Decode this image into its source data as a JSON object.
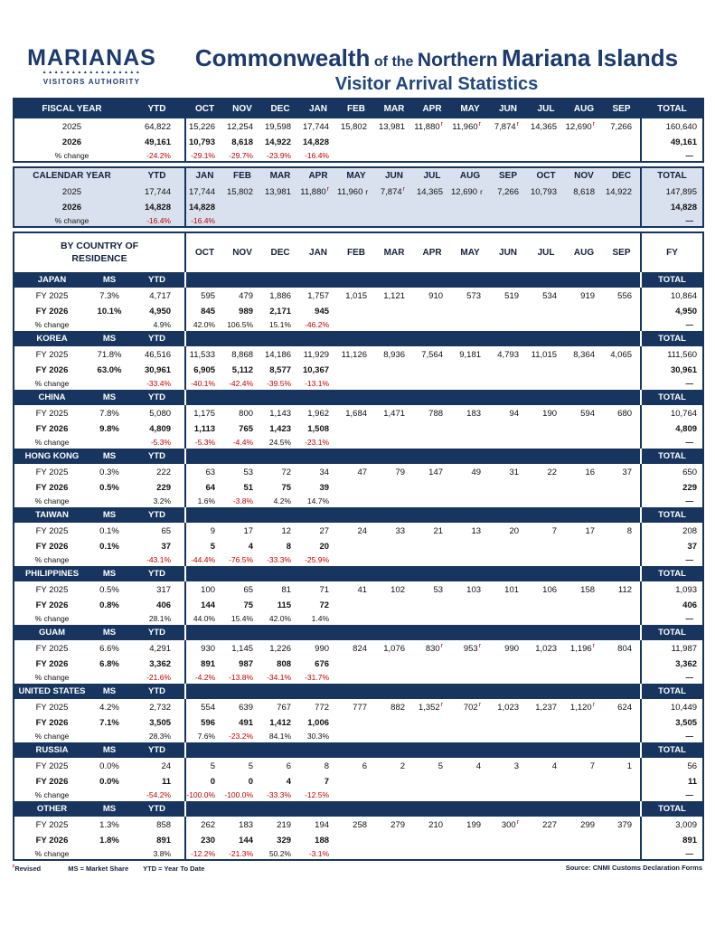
{
  "header": {
    "logo": {
      "brand": "MARIANAS",
      "zigzag": "▲▲▲▲▲▲▲▲▲▲▲▲▲▲▲▲▲",
      "sub": "VISITORS AUTHORITY"
    },
    "title_parts": {
      "p1": "Commonwealth",
      "p2": "of the",
      "p3": "Northern",
      "p4": "Mariana Islands"
    },
    "subtitle": "Visitor Arrival Statistics"
  },
  "colors": {
    "navy": "#17355e",
    "calendar_bg": "#d9e1ee",
    "negative_red": "#c00000"
  },
  "fiscal": {
    "title": "FISCAL YEAR",
    "ytd_label": "YTD",
    "months": [
      "OCT",
      "NOV",
      "DEC",
      "JAN",
      "FEB",
      "MAR",
      "APR",
      "MAY",
      "JUN",
      "JUL",
      "AUG",
      "SEP"
    ],
    "total_label": "TOTAL",
    "rows": [
      {
        "label": "2025",
        "cls": "y1",
        "ytd": "64,822",
        "months": [
          "15,226",
          "12,254",
          "19,598",
          "17,744",
          "15,802",
          "13,981",
          {
            "v": "11,880",
            "f": "r",
            "fc": "red"
          },
          {
            "v": "11,960",
            "f": "r",
            "fc": "red"
          },
          {
            "v": "7,874",
            "f": "r",
            "fc": "red"
          },
          "14,365",
          {
            "v": "12,690",
            "f": "r",
            "fc": "red"
          },
          "7,266"
        ],
        "total": "160,640"
      },
      {
        "label": "2026",
        "cls": "y2",
        "ytd": "49,161",
        "months": [
          "10,793",
          "8,618",
          "14,922",
          "14,828",
          "",
          "",
          "",
          "",
          "",
          "",
          "",
          ""
        ],
        "total": "49,161"
      },
      {
        "label": "% change",
        "cls": "pct",
        "ytd": "-24.2%",
        "months": [
          "-29.1%",
          "-29.7%",
          "-23.9%",
          "-16.4%",
          "",
          "",
          "",
          "",
          "",
          "",
          "",
          ""
        ],
        "total": "—"
      }
    ]
  },
  "calendar": {
    "title": "CALENDAR YEAR",
    "ytd_label": "YTD",
    "months": [
      "JAN",
      "FEB",
      "MAR",
      "APR",
      "MAY",
      "JUN",
      "JUL",
      "AUG",
      "SEP",
      "OCT",
      "NOV",
      "DEC"
    ],
    "total_label": "TOTAL",
    "rows": [
      {
        "label": "2025",
        "cls": "y1",
        "ytd": "17,744",
        "months": [
          "17,744",
          "15,802",
          "13,981",
          {
            "v": "11,880",
            "f": "r",
            "fc": "red"
          },
          {
            "v": "11,960",
            "f": "r",
            "fc": "blk"
          },
          {
            "v": "7,874",
            "f": "r",
            "fc": "red"
          },
          "14,365",
          {
            "v": "12,690",
            "f": "r",
            "fc": "blk"
          },
          "7,266",
          "10,793",
          "8,618",
          "14,922"
        ],
        "total": "147,895"
      },
      {
        "label": "2026",
        "cls": "y2",
        "ytd": "14,828",
        "months": [
          "14,828",
          "",
          "",
          "",
          "",
          "",
          "",
          "",
          "",
          "",
          "",
          ""
        ],
        "total": "14,828"
      },
      {
        "label": "% change",
        "cls": "pct",
        "ytd": "-16.4%",
        "months": [
          "-16.4%",
          "",
          "",
          "",
          "",
          "",
          "",
          "",
          "",
          "",
          "",
          ""
        ],
        "total": "—"
      }
    ]
  },
  "by_country": {
    "header_left_line1": "BY COUNTRY OF",
    "header_left_line2": "RESIDENCE",
    "months": [
      "OCT",
      "NOV",
      "DEC",
      "JAN",
      "FEB",
      "MAR",
      "APR",
      "MAY",
      "JUN",
      "JUL",
      "AUG",
      "SEP"
    ],
    "fy_label": "FY",
    "ms_label": "MS",
    "ytd_label": "YTD",
    "total_label": "TOTAL",
    "sections": [
      {
        "name": "JAPAN",
        "rows": [
          {
            "label": "FY 2025",
            "cls": "y1",
            "ms": "7.3%",
            "ytd": "4,717",
            "months": [
              "595",
              "479",
              "1,886",
              "1,757",
              "1,015",
              "1,121",
              "910",
              "573",
              "519",
              "534",
              "919",
              "556"
            ],
            "total": "10,864"
          },
          {
            "label": "FY 2026",
            "cls": "y2",
            "ms": "10.1%",
            "ytd": "4,950",
            "months": [
              "845",
              "989",
              "2,171",
              "945",
              "",
              "",
              "",
              "",
              "",
              "",
              "",
              ""
            ],
            "total": "4,950"
          },
          {
            "label": "% change",
            "cls": "pct",
            "ms": "",
            "ytd": "4.9%",
            "months": [
              "42.0%",
              "106.5%",
              "15.1%",
              "-46.2%",
              "",
              "",
              "",
              "",
              "",
              "",
              "",
              ""
            ],
            "total": "—"
          }
        ]
      },
      {
        "name": "KOREA",
        "rows": [
          {
            "label": "FY 2025",
            "cls": "y1",
            "ms": "71.8%",
            "ytd": "46,516",
            "months": [
              "11,533",
              "8,868",
              "14,186",
              "11,929",
              "11,126",
              "8,936",
              "7,564",
              "9,181",
              "4,793",
              "11,015",
              "8,364",
              "4,065"
            ],
            "total": "111,560"
          },
          {
            "label": "FY 2026",
            "cls": "y2",
            "ms": "63.0%",
            "ytd": "30,961",
            "months": [
              "6,905",
              "5,112",
              "8,577",
              "10,367",
              "",
              "",
              "",
              "",
              "",
              "",
              "",
              ""
            ],
            "total": "30,961"
          },
          {
            "label": "% change",
            "cls": "pct",
            "ms": "",
            "ytd": "-33.4%",
            "months": [
              "-40.1%",
              "-42.4%",
              "-39.5%",
              "-13.1%",
              "",
              "",
              "",
              "",
              "",
              "",
              "",
              ""
            ],
            "total": "—"
          }
        ]
      },
      {
        "name": "CHINA",
        "rows": [
          {
            "label": "FY 2025",
            "cls": "y1",
            "ms": "7.8%",
            "ytd": "5,080",
            "months": [
              "1,175",
              "800",
              "1,143",
              "1,962",
              "1,684",
              "1,471",
              "788",
              "183",
              "94",
              "190",
              "594",
              "680"
            ],
            "total": "10,764"
          },
          {
            "label": "FY 2026",
            "cls": "y2",
            "ms": "9.8%",
            "ytd": "4,809",
            "months": [
              "1,113",
              "765",
              "1,423",
              "1,508",
              "",
              "",
              "",
              "",
              "",
              "",
              "",
              ""
            ],
            "total": "4,809"
          },
          {
            "label": "% change",
            "cls": "pct",
            "ms": "",
            "ytd": "-5.3%",
            "months": [
              "-5.3%",
              "-4.4%",
              "24.5%",
              "-23.1%",
              "",
              "",
              "",
              "",
              "",
              "",
              "",
              ""
            ],
            "total": "—"
          }
        ]
      },
      {
        "name": "HONG KONG",
        "rows": [
          {
            "label": "FY 2025",
            "cls": "y1",
            "ms": "0.3%",
            "ytd": "222",
            "months": [
              "63",
              "53",
              "72",
              "34",
              "47",
              "79",
              "147",
              "49",
              "31",
              "22",
              "16",
              "37"
            ],
            "total": "650"
          },
          {
            "label": "FY 2026",
            "cls": "y2",
            "ms": "0.5%",
            "ytd": "229",
            "months": [
              "64",
              "51",
              "75",
              "39",
              "",
              "",
              "",
              "",
              "",
              "",
              "",
              ""
            ],
            "total": "229"
          },
          {
            "label": "% change",
            "cls": "pct",
            "ms": "",
            "ytd": "3.2%",
            "months": [
              "1.6%",
              "-3.8%",
              "4.2%",
              "14.7%",
              "",
              "",
              "",
              "",
              "",
              "",
              "",
              ""
            ],
            "total": "—"
          }
        ]
      },
      {
        "name": "TAIWAN",
        "rows": [
          {
            "label": "FY 2025",
            "cls": "y1",
            "ms": "0.1%",
            "ytd": "65",
            "months": [
              "9",
              "17",
              "12",
              "27",
              "24",
              "33",
              "21",
              "13",
              "20",
              "7",
              "17",
              "8"
            ],
            "total": "208"
          },
          {
            "label": "FY 2026",
            "cls": "y2",
            "ms": "0.1%",
            "ytd": "37",
            "months": [
              "5",
              "4",
              "8",
              "20",
              "",
              "",
              "",
              "",
              "",
              "",
              "",
              ""
            ],
            "total": "37"
          },
          {
            "label": "% change",
            "cls": "pct",
            "ms": "",
            "ytd": "-43.1%",
            "months": [
              "-44.4%",
              "-76.5%",
              "-33.3%",
              "-25.9%",
              "",
              "",
              "",
              "",
              "",
              "",
              "",
              ""
            ],
            "total": "—"
          }
        ]
      },
      {
        "name": "PHILIPPINES",
        "rows": [
          {
            "label": "FY 2025",
            "cls": "y1",
            "ms": "0.5%",
            "ytd": "317",
            "months": [
              "100",
              "65",
              "81",
              "71",
              "41",
              "102",
              "53",
              "103",
              "101",
              "106",
              "158",
              "112"
            ],
            "total": "1,093"
          },
          {
            "label": "FY 2026",
            "cls": "y2",
            "ms": "0.8%",
            "ytd": "406",
            "months": [
              "144",
              "75",
              "115",
              "72",
              "",
              "",
              "",
              "",
              "",
              "",
              "",
              ""
            ],
            "total": "406"
          },
          {
            "label": "% change",
            "cls": "pct",
            "ms": "",
            "ytd": "28.1%",
            "months": [
              "44.0%",
              "15.4%",
              "42.0%",
              "1.4%",
              "",
              "",
              "",
              "",
              "",
              "",
              "",
              ""
            ],
            "total": "—"
          }
        ]
      },
      {
        "name": "GUAM",
        "rows": [
          {
            "label": "FY 2025",
            "cls": "y1",
            "ms": "6.6%",
            "ytd": "4,291",
            "months": [
              "930",
              "1,145",
              "1,226",
              "990",
              "824",
              "1,076",
              {
                "v": "830",
                "f": "r",
                "fc": "red"
              },
              {
                "v": "953",
                "f": "r",
                "fc": "red"
              },
              "990",
              "1,023",
              {
                "v": "1,196",
                "f": "r",
                "fc": "red"
              },
              "804"
            ],
            "total": "11,987"
          },
          {
            "label": "FY 2026",
            "cls": "y2",
            "ms": "6.8%",
            "ytd": "3,362",
            "months": [
              "891",
              "987",
              "808",
              "676",
              "",
              "",
              "",
              "",
              "",
              "",
              "",
              ""
            ],
            "total": "3,362"
          },
          {
            "label": "% change",
            "cls": "pct",
            "ms": "",
            "ytd": "-21.6%",
            "months": [
              "-4.2%",
              "-13.8%",
              "-34.1%",
              "-31.7%",
              "",
              "",
              "",
              "",
              "",
              "",
              "",
              ""
            ],
            "total": "—"
          }
        ]
      },
      {
        "name": "UNITED STATES",
        "rows": [
          {
            "label": "FY 2025",
            "cls": "y1",
            "ms": "4.2%",
            "ytd": "2,732",
            "months": [
              "554",
              "639",
              "767",
              "772",
              "777",
              "882",
              {
                "v": "1,352",
                "f": "r",
                "fc": "red"
              },
              {
                "v": "702",
                "f": "r",
                "fc": "red"
              },
              "1,023",
              "1,237",
              {
                "v": "1,120",
                "f": "r",
                "fc": "red"
              },
              "624"
            ],
            "total": "10,449"
          },
          {
            "label": "FY 2026",
            "cls": "y2",
            "ms": "7.1%",
            "ytd": "3,505",
            "months": [
              "596",
              "491",
              "1,412",
              "1,006",
              "",
              "",
              "",
              "",
              "",
              "",
              "",
              ""
            ],
            "total": "3,505"
          },
          {
            "label": "% change",
            "cls": "pct",
            "ms": "",
            "ytd": "28.3%",
            "months": [
              "7.6%",
              "-23.2%",
              "84.1%",
              "30.3%",
              "",
              "",
              "",
              "",
              "",
              "",
              "",
              ""
            ],
            "total": "—"
          }
        ]
      },
      {
        "name": "RUSSIA",
        "rows": [
          {
            "label": "FY 2025",
            "cls": "y1",
            "ms": "0.0%",
            "ytd": "24",
            "months": [
              "5",
              "5",
              "6",
              "8",
              "6",
              "2",
              "5",
              "4",
              "3",
              "4",
              "7",
              "1"
            ],
            "total": "56"
          },
          {
            "label": "FY 2026",
            "cls": "y2",
            "ms": "0.0%",
            "ytd": "11",
            "months": [
              "0",
              "0",
              "4",
              "7",
              "",
              "",
              "",
              "",
              "",
              "",
              "",
              ""
            ],
            "total": "11"
          },
          {
            "label": "% change",
            "cls": "pct",
            "ms": "",
            "ytd": "-54.2%",
            "months": [
              "-100.0%",
              "-100.0%",
              "-33.3%",
              "-12.5%",
              "",
              "",
              "",
              "",
              "",
              "",
              "",
              ""
            ],
            "total": "—"
          }
        ]
      },
      {
        "name": "OTHER",
        "rows": [
          {
            "label": "FY 2025",
            "cls": "y1",
            "ms": "1.3%",
            "ytd": "858",
            "months": [
              "262",
              "183",
              "219",
              "194",
              "258",
              "279",
              "210",
              "199",
              {
                "v": "300",
                "f": "r",
                "fc": "red"
              },
              "227",
              "299",
              "379"
            ],
            "total": "3,009"
          },
          {
            "label": "FY 2026",
            "cls": "y2",
            "ms": "1.8%",
            "ytd": "891",
            "months": [
              "230",
              "144",
              "329",
              "188",
              "",
              "",
              "",
              "",
              "",
              "",
              "",
              ""
            ],
            "total": "891"
          },
          {
            "label": "% change",
            "cls": "pct",
            "ms": "",
            "ytd": "3.8%",
            "months": [
              "-12.2%",
              "-21.3%",
              "50.2%",
              "-3.1%",
              "",
              "",
              "",
              "",
              "",
              "",
              "",
              ""
            ],
            "total": "—"
          }
        ]
      }
    ]
  },
  "footer": {
    "note_flag": "r",
    "note_revised": "Revised",
    "note_ms": "MS = Market Share",
    "note_ytd": "YTD = Year To Date",
    "source": "Source: CNMI Customs Declaration Forms"
  }
}
